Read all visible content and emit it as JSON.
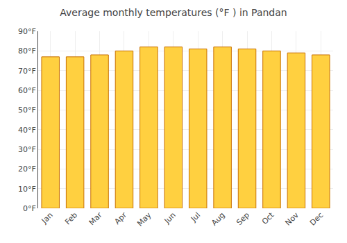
{
  "chart_data": {
    "type": "bar",
    "title": "Average monthly temperatures (°F ) in Pandan",
    "categories": [
      "Jan",
      "Feb",
      "Mar",
      "Apr",
      "May",
      "Jun",
      "Jul",
      "Aug",
      "Sep",
      "Oct",
      "Nov",
      "Dec"
    ],
    "values": [
      77,
      77,
      78,
      80,
      82,
      82,
      81,
      82,
      81,
      80,
      79,
      78
    ],
    "color": "#FFD040",
    "ylim": [
      0,
      90
    ],
    "yticks": [
      {
        "value": 0,
        "label": "0°F"
      },
      {
        "value": 10,
        "label": "10°F"
      },
      {
        "value": 20,
        "label": "20°F"
      },
      {
        "value": 30,
        "label": "30°F"
      },
      {
        "value": 40,
        "label": "40°F"
      },
      {
        "value": 50,
        "label": "50°F"
      },
      {
        "value": 60,
        "label": "60°F"
      },
      {
        "value": 70,
        "label": "70°F"
      },
      {
        "value": 80,
        "label": "80°F"
      },
      {
        "value": 90,
        "label": "90°F"
      }
    ],
    "grid": true
  }
}
